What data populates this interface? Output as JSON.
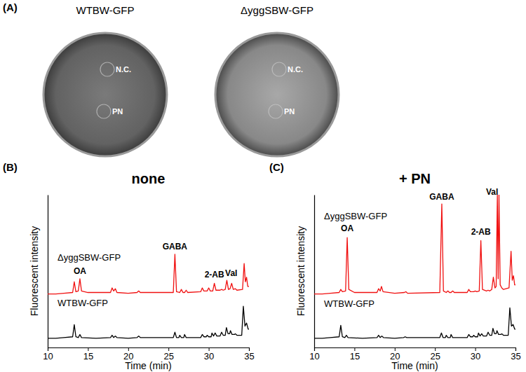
{
  "panel_labels": [
    "(A)",
    "(B)",
    "(C)"
  ],
  "plates": [
    {
      "title": "WTBW-GFP",
      "spots": [
        "N.C.",
        "PN"
      ]
    },
    {
      "title": "ΔyggSBW-GFP",
      "spots": [
        "N.C.",
        "PN"
      ]
    }
  ],
  "chart_data": [
    {
      "type": "line",
      "title": "none",
      "x_label": "Time (min)",
      "y_label": "Fluorescent intensity",
      "xlim": [
        10,
        35
      ],
      "xticks": [
        10,
        15,
        20,
        25,
        30,
        35
      ],
      "ylim": [
        0,
        100
      ],
      "tick_labels": "x",
      "series": [
        {
          "name": "ΔyggSBW-GFP",
          "color": "#f01010",
          "x": [
            10,
            11,
            12,
            13.1,
            13.3,
            13.5,
            13.8,
            14.0,
            14.2,
            15,
            17.8,
            18.0,
            18.2,
            18.4,
            18.6,
            20,
            21.1,
            21.3,
            21.5,
            25.6,
            25.8,
            26.0,
            26.4,
            26.6,
            26.8,
            27,
            27.2,
            27.4,
            29.0,
            29.2,
            29.4,
            29.8,
            30.0,
            30.2,
            30.5,
            30.7,
            30.9,
            31.4,
            31.6,
            31.8,
            32.05,
            32.25,
            32.45,
            32.65,
            32.85,
            33.05,
            33.3,
            33.5,
            34.2,
            34.4,
            34.55,
            34.7,
            34.85,
            35
          ],
          "values": [
            35,
            35,
            35.5,
            36,
            43,
            36.5,
            37,
            45,
            37,
            36,
            36,
            39,
            37,
            38.5,
            36,
            35.5,
            36,
            37,
            36,
            36,
            61,
            36.5,
            36,
            38,
            36,
            36,
            37.5,
            36,
            36.5,
            39,
            37,
            37,
            39,
            37,
            37,
            42,
            37.5,
            37.5,
            38,
            37.5,
            38,
            44,
            38,
            38.5,
            42,
            38,
            38.5,
            37.5,
            38,
            55,
            43,
            46,
            40,
            40
          ]
        },
        {
          "name": "WTBW-GFP",
          "color": "#000000",
          "x": [
            10,
            11,
            12,
            13.1,
            13.3,
            13.5,
            13.8,
            14.0,
            14.2,
            16,
            17.8,
            18.0,
            18.2,
            18.4,
            18.6,
            20,
            21.1,
            21.3,
            21.5,
            25.6,
            25.8,
            26.0,
            26.3,
            26.4,
            26.6,
            26.9,
            27.0,
            27.2,
            29.0,
            29.2,
            29.4,
            29.7,
            29.8,
            30.0,
            30.3,
            30.4,
            30.6,
            30.8,
            31.0,
            31.4,
            31.6,
            31.8,
            32.05,
            32.2,
            32.4,
            32.6,
            32.7,
            32.9,
            33.2,
            33.3,
            33.5,
            34.1,
            34.3,
            34.5,
            34.7,
            34.9,
            35
          ],
          "values": [
            6,
            6,
            6.5,
            7,
            15,
            7,
            6.5,
            8.5,
            6.5,
            6,
            6.5,
            8,
            6.5,
            7.5,
            6.5,
            6,
            6.5,
            7.5,
            6.5,
            6.5,
            10,
            6.5,
            6.5,
            8,
            6.5,
            6.5,
            8.5,
            6.5,
            6.5,
            8.5,
            7,
            7,
            8,
            7,
            7,
            9.5,
            7.5,
            9.5,
            7.5,
            7.5,
            10,
            8,
            8,
            13,
            9,
            9,
            11,
            8.5,
            8.5,
            9,
            8,
            8,
            27,
            14,
            16,
            12,
            12
          ]
        }
      ],
      "annotations": [
        {
          "text": "OA",
          "x": 14.0,
          "y": 48
        },
        {
          "text": "GABA",
          "x": 25.8,
          "y": 64
        },
        {
          "text": "2-AB",
          "x": 30.7,
          "y": 46
        },
        {
          "text": "Val",
          "x": 32.8,
          "y": 47
        }
      ]
    },
    {
      "type": "line",
      "title": "+ PN",
      "x_label": "Time (min)",
      "y_label": "Fluorescent intensity",
      "xlim": [
        10,
        35
      ],
      "xticks": [
        10,
        15,
        20,
        25,
        30,
        35
      ],
      "ylim": [
        0,
        100
      ],
      "tick_labels": "x",
      "series": [
        {
          "name": "ΔyggSBW-GFP",
          "color": "#f01010",
          "x": [
            10,
            11,
            12,
            13.1,
            13.3,
            13.5,
            13.9,
            14.1,
            14.3,
            15,
            17.8,
            18.0,
            18.2,
            18.35,
            18.55,
            20,
            21.2,
            21.4,
            21.6,
            25.6,
            25.85,
            26.05,
            26.4,
            26.6,
            26.8,
            27,
            27.2,
            27.4,
            29.0,
            29.2,
            29.4,
            29.8,
            30.0,
            30.2,
            30.5,
            30.7,
            30.9,
            31.4,
            31.6,
            31.8,
            32.05,
            32.25,
            32.45,
            32.6,
            32.75,
            32.85,
            32.95,
            33.1,
            33.3,
            33.5,
            34.2,
            34.45,
            34.6,
            34.75,
            34.9,
            35
          ],
          "values": [
            35,
            35,
            35.5,
            36,
            38,
            36.5,
            37,
            72,
            38,
            36,
            36,
            38.5,
            37,
            40,
            36.5,
            35.5,
            36,
            36.5,
            35.5,
            36,
            94,
            37,
            36,
            37,
            36,
            36,
            37,
            36,
            36,
            38,
            36.5,
            36.5,
            37,
            36.5,
            37,
            70,
            38,
            37,
            37.5,
            37,
            38,
            46,
            39,
            40,
            100,
            45,
            100,
            41,
            39,
            38,
            39,
            63,
            44,
            47,
            41,
            41
          ]
        },
        {
          "name": "WTBW-GFP",
          "color": "#000000",
          "x": [
            10,
            11,
            12,
            13.1,
            13.3,
            13.5,
            13.8,
            14.0,
            14.2,
            16,
            17.8,
            18.0,
            18.2,
            18.4,
            18.6,
            20,
            21.1,
            21.3,
            21.5,
            25.6,
            25.8,
            26.0,
            26.3,
            26.4,
            26.6,
            26.9,
            27.0,
            27.2,
            29.0,
            29.2,
            29.4,
            29.7,
            29.8,
            30.0,
            30.3,
            30.4,
            30.6,
            30.8,
            31.0,
            31.4,
            31.6,
            31.8,
            32.05,
            32.2,
            32.4,
            32.6,
            32.7,
            32.9,
            33.2,
            33.3,
            33.5,
            34.1,
            34.3,
            34.5,
            34.7,
            34.9,
            35
          ],
          "values": [
            6,
            6,
            6.5,
            7,
            14.5,
            7,
            6.5,
            8,
            6.5,
            6,
            6.5,
            8,
            6.5,
            7.5,
            6.5,
            6,
            6.5,
            7,
            6.5,
            6.5,
            9.5,
            6.5,
            6.5,
            8,
            6.5,
            6.5,
            8.5,
            6.5,
            6.5,
            8.5,
            7,
            7,
            8,
            7,
            7,
            9.5,
            7.5,
            9,
            7.5,
            7.5,
            10,
            8,
            8,
            12.5,
            9,
            9,
            11,
            8.5,
            8.5,
            9,
            8,
            8,
            26,
            14,
            15,
            12,
            12
          ]
        }
      ],
      "annotations": [
        {
          "text": "OA",
          "x": 14.1,
          "y": 76
        },
        {
          "text": "GABA",
          "x": 25.85,
          "y": 97
        },
        {
          "text": "2-AB",
          "x": 30.7,
          "y": 74
        },
        {
          "text": "Val",
          "x": 32.1,
          "y": 100
        }
      ]
    }
  ]
}
